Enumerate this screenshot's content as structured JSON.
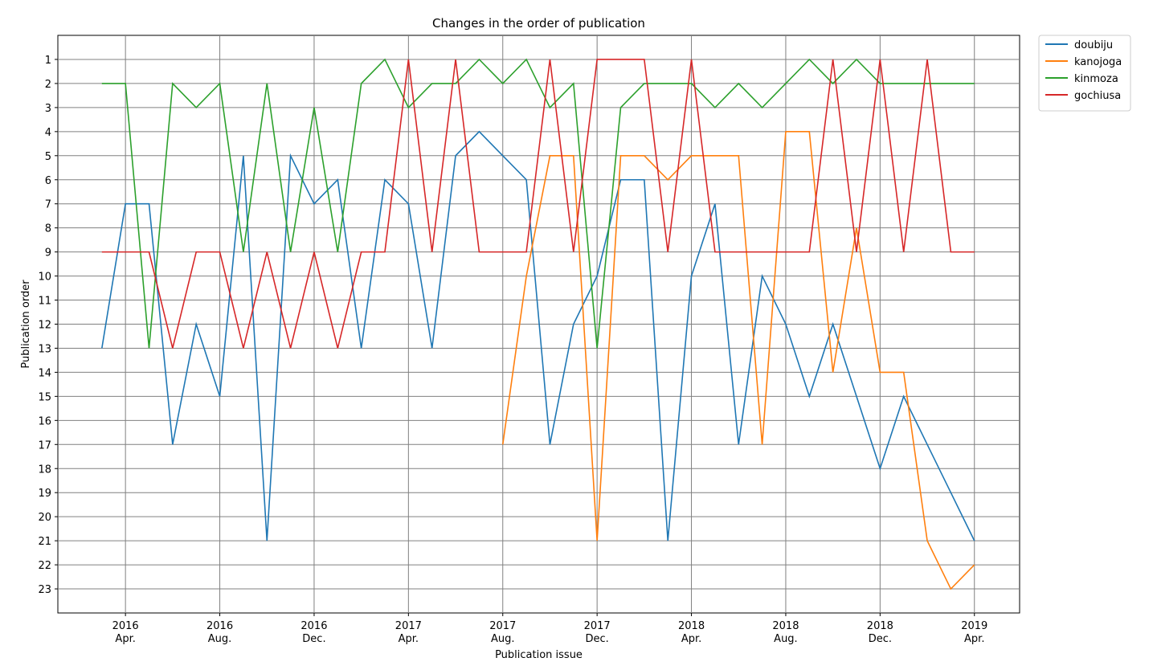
{
  "chart_data": {
    "type": "line",
    "title": "Changes in the order of publication",
    "xlabel": "Publication issue",
    "ylabel": "Publication order",
    "x_ticks": [
      {
        "year": "2016",
        "month": "Apr."
      },
      {
        "year": "2016",
        "month": "Aug."
      },
      {
        "year": "2016",
        "month": "Dec."
      },
      {
        "year": "2017",
        "month": "Apr."
      },
      {
        "year": "2017",
        "month": "Aug."
      },
      {
        "year": "2017",
        "month": "Dec."
      },
      {
        "year": "2018",
        "month": "Apr."
      },
      {
        "year": "2018",
        "month": "Aug."
      },
      {
        "year": "2018",
        "month": "Dec."
      },
      {
        "year": "2019",
        "month": "Apr."
      }
    ],
    "x": [
      "2016-03",
      "2016-04",
      "2016-05",
      "2016-06",
      "2016-07",
      "2016-08",
      "2016-09",
      "2016-10",
      "2016-11",
      "2016-12",
      "2017-01",
      "2017-02",
      "2017-03",
      "2017-04",
      "2017-05",
      "2017-06",
      "2017-07",
      "2017-08",
      "2017-09",
      "2017-10",
      "2017-11",
      "2017-12",
      "2018-01",
      "2018-02",
      "2018-03",
      "2018-04",
      "2018-05",
      "2018-06",
      "2018-07",
      "2018-08",
      "2018-09",
      "2018-10",
      "2018-11",
      "2018-12",
      "2019-01",
      "2019-02",
      "2019-03",
      "2019-04"
    ],
    "y_ticks": [
      1,
      2,
      3,
      4,
      5,
      6,
      7,
      8,
      9,
      10,
      11,
      12,
      13,
      14,
      15,
      16,
      17,
      18,
      19,
      20,
      21,
      22,
      23
    ],
    "ylim": [
      0,
      24
    ],
    "y_inverted": true,
    "grid": true,
    "legend_position": "outside top-right",
    "series": [
      {
        "name": "doubiju",
        "color": "#1f77b4",
        "values": [
          13,
          7,
          7,
          17,
          12,
          15,
          5,
          21,
          5,
          7,
          6,
          13,
          6,
          7,
          13,
          5,
          4,
          5,
          6,
          17,
          12,
          10,
          6,
          6,
          21,
          10,
          7,
          17,
          10,
          12,
          15,
          12,
          15,
          18,
          15,
          17,
          19,
          21
        ]
      },
      {
        "name": "kanojoga",
        "color": "#ff7f0e",
        "values": [
          null,
          null,
          null,
          null,
          null,
          null,
          null,
          null,
          null,
          null,
          null,
          null,
          null,
          null,
          null,
          null,
          null,
          17,
          10,
          5,
          5,
          21,
          5,
          5,
          6,
          5,
          5,
          5,
          17,
          4,
          4,
          14,
          8,
          14,
          14,
          21,
          23,
          22
        ]
      },
      {
        "name": "kinmoza",
        "color": "#2ca02c",
        "values": [
          2,
          2,
          13,
          2,
          3,
          2,
          9,
          2,
          9,
          3,
          9,
          2,
          1,
          3,
          2,
          2,
          1,
          2,
          1,
          3,
          2,
          13,
          3,
          2,
          2,
          2,
          3,
          2,
          3,
          2,
          1,
          2,
          1,
          2,
          2,
          2,
          2,
          2
        ]
      },
      {
        "name": "gochiusa",
        "color": "#d62728",
        "values": [
          9,
          9,
          9,
          13,
          9,
          9,
          13,
          9,
          13,
          9,
          13,
          9,
          9,
          1,
          9,
          1,
          9,
          9,
          9,
          1,
          9,
          1,
          1,
          1,
          9,
          1,
          9,
          9,
          9,
          9,
          9,
          1,
          9,
          1,
          9,
          1,
          9,
          9
        ]
      }
    ]
  }
}
